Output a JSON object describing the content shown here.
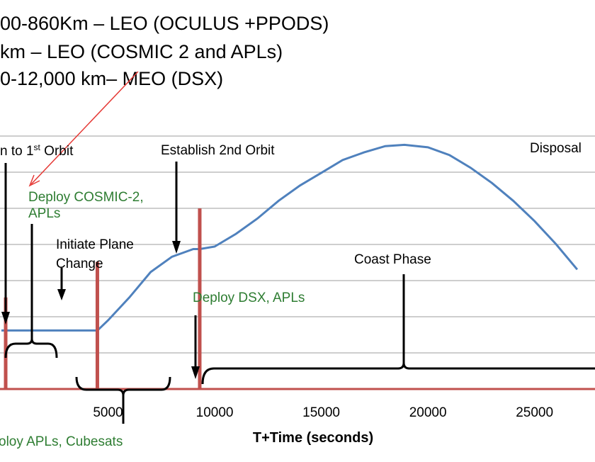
{
  "header_lines": [
    "00-860Km – LEO (OCULUS +PPODS)",
    " km – LEO (COSMIC 2 and APLs)",
    "0-12,000 km– MEO (DSX)"
  ],
  "chart_data": {
    "type": "line",
    "xlabel": "T+Time (seconds)",
    "xlim": [
      0,
      27000
    ],
    "x_ticks": [
      5000,
      10000,
      15000,
      20000,
      25000
    ],
    "grid": true,
    "colors": {
      "altitude": "#4f81bd",
      "burn": "#c0504d",
      "annotation_black": "#000000",
      "annotation_green": "#2e7d32",
      "arrow": "#e53935"
    },
    "series": [
      {
        "kind": "altitude",
        "x": [
          0,
          600,
          4500,
          5000,
          6000,
          7000,
          8000,
          9000,
          9300,
          10000,
          11000,
          12000,
          13000,
          14000,
          15000,
          16000,
          17000,
          18000,
          18900,
          20000,
          21000,
          22000,
          23000,
          24000,
          25000,
          26000,
          27000
        ],
        "y": [
          0.23,
          0.23,
          0.23,
          0.27,
          0.36,
          0.46,
          0.52,
          0.55,
          0.55,
          0.56,
          0.61,
          0.67,
          0.74,
          0.8,
          0.85,
          0.9,
          0.93,
          0.955,
          0.96,
          0.95,
          0.92,
          0.87,
          0.81,
          0.74,
          0.66,
          0.57,
          0.47
        ]
      },
      {
        "kind": "burns",
        "x": [
          200,
          4500,
          9300
        ],
        "y": [
          0.36,
          0.5,
          0.71
        ]
      }
    ],
    "annotations": [
      {
        "text": "n to 1",
        "sup": "st",
        "tail": " Orbit",
        "color": "black"
      },
      {
        "text": "Establish 2nd Orbit",
        "color": "black"
      },
      {
        "text": "Disposal",
        "color": "black"
      },
      {
        "text": "Deploy COSMIC-2,",
        "color": "green"
      },
      {
        "text": "APLs",
        "color": "green"
      },
      {
        "text": "Initiate Plane",
        "color": "black"
      },
      {
        "text": "Change",
        "color": "black"
      },
      {
        "text": "Coast Phase",
        "color": "black"
      },
      {
        "text": "Deploy DSX, APLs",
        "color": "green"
      },
      {
        "text": "oloy APLs, Cubesats",
        "color": "green"
      }
    ]
  }
}
